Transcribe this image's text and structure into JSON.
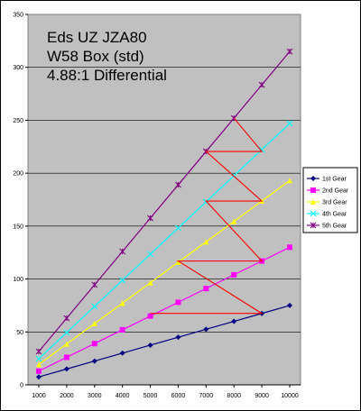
{
  "chart_data": {
    "type": "line",
    "title_lines": [
      "Eds UZ JZA80",
      "W58 Box (std)",
      "4.88:1 Differential"
    ],
    "x": [
      1000,
      2000,
      3000,
      4000,
      5000,
      6000,
      7000,
      8000,
      9000,
      10000
    ],
    "x_tick_labels": [
      "1000",
      "2000",
      "3000",
      "4000",
      "5000",
      "6000",
      "7000",
      "8000",
      "9000",
      "10000"
    ],
    "ylim": [
      0,
      350
    ],
    "y_ticks": [
      0,
      50,
      100,
      150,
      200,
      250,
      300,
      350
    ],
    "y_tick_labels": [
      "0",
      "50",
      "100",
      "150",
      "200",
      "250",
      "300",
      "350"
    ],
    "grid": "horizontal",
    "legend_position": "right",
    "series": [
      {
        "name": "1st Gear",
        "color": "#000080",
        "marker": "diamond",
        "values": [
          7.5,
          15,
          22.5,
          30,
          37.5,
          45,
          52.5,
          60,
          67.5,
          75
        ]
      },
      {
        "name": "2nd Gear",
        "color": "#ff00ff",
        "marker": "square",
        "values": [
          13,
          26,
          39,
          52,
          65,
          78,
          91,
          104,
          117,
          130
        ]
      },
      {
        "name": "3rd Gear",
        "color": "#ffff00",
        "marker": "triangle",
        "values": [
          19.3,
          38.6,
          57.9,
          77.2,
          96.5,
          115.8,
          135.1,
          154.4,
          173.7,
          193
        ]
      },
      {
        "name": "4th Gear",
        "color": "#00ffff",
        "marker": "x",
        "values": [
          24.7,
          49.4,
          74.1,
          98.8,
          123.5,
          148.2,
          172.9,
          197.6,
          222.3,
          247
        ]
      },
      {
        "name": "5th Gear",
        "color": "#800080",
        "marker": "star",
        "values": [
          31.5,
          63,
          94.5,
          126,
          157.5,
          189,
          220.5,
          252,
          283.5,
          315
        ]
      }
    ],
    "shift_lines": {
      "color": "#ff0000",
      "points": [
        [
          5000,
          67.5
        ],
        [
          9000,
          67.5
        ],
        [
          6000,
          117
        ],
        [
          9000,
          117
        ],
        [
          7000,
          173.7
        ],
        [
          9000,
          173.7
        ],
        [
          7000,
          220.5
        ],
        [
          9000,
          220.5
        ],
        [
          8000,
          252
        ]
      ]
    }
  }
}
